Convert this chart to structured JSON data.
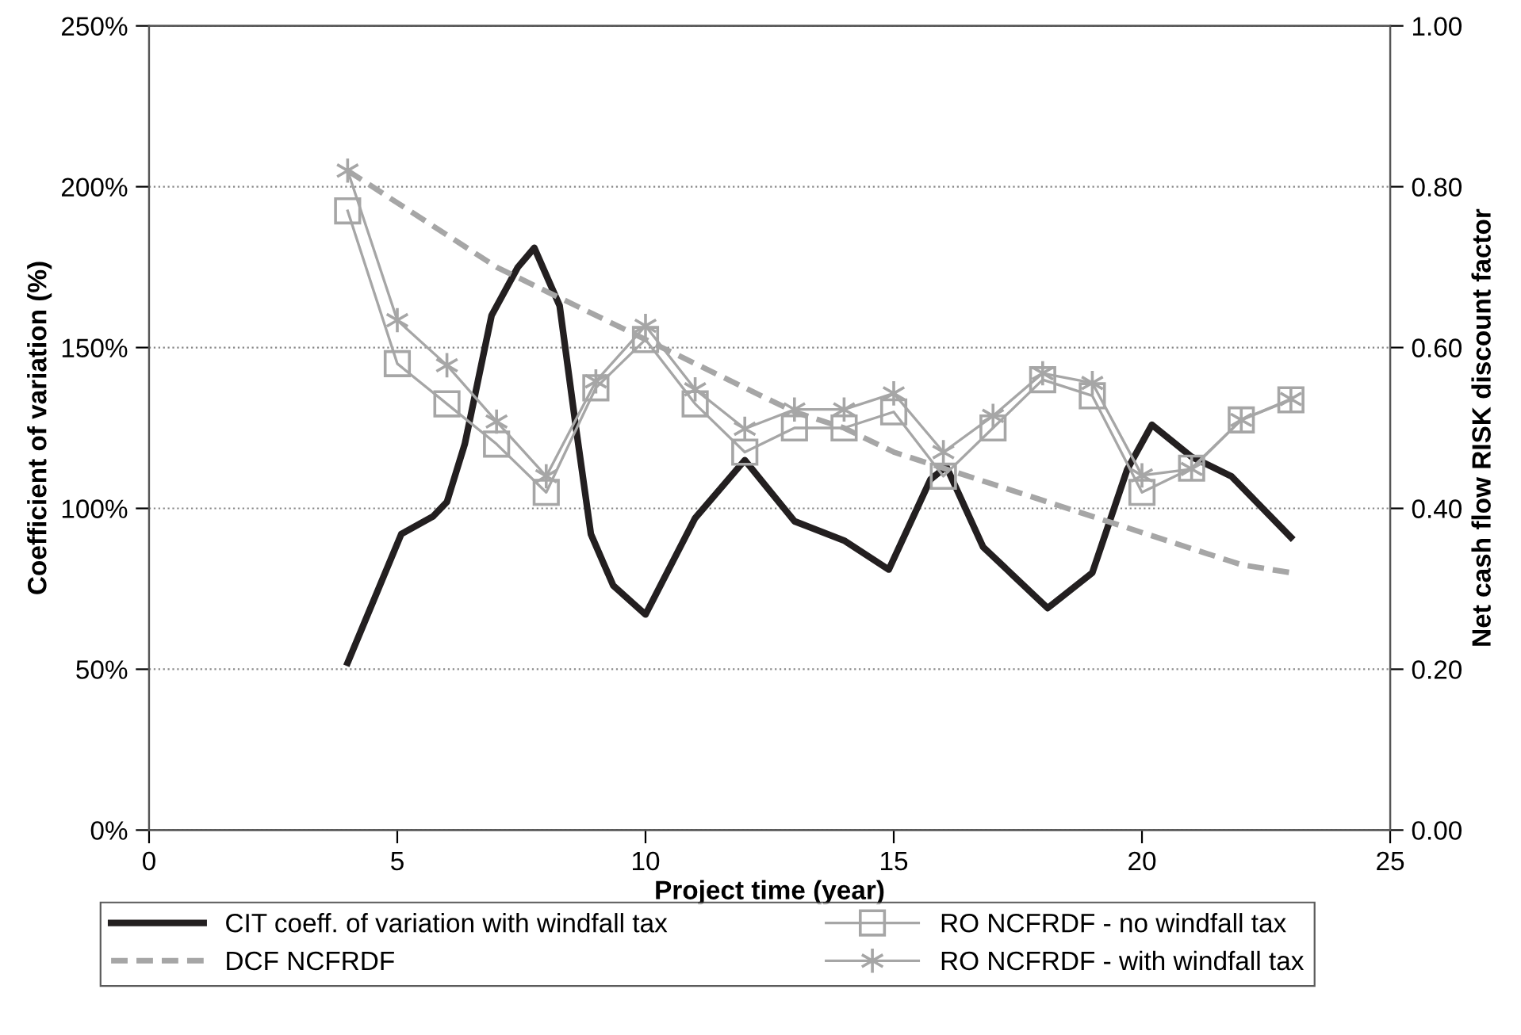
{
  "chart_data": {
    "type": "line",
    "xlabel": "Project time (year)",
    "ylabel": "Coefficient of variation (%)",
    "y2label": "Net cash flow RISK discount factor",
    "xlim": [
      0,
      25
    ],
    "xticks": [
      0,
      5,
      10,
      15,
      20,
      25
    ],
    "ylim": [
      0,
      250
    ],
    "yticks": [
      {
        "value": 0,
        "label": "0%"
      },
      {
        "value": 50,
        "label": "50%"
      },
      {
        "value": 100,
        "label": "100%"
      },
      {
        "value": 150,
        "label": "150%"
      },
      {
        "value": 200,
        "label": "200%"
      },
      {
        "value": 250,
        "label": "250%"
      }
    ],
    "y2lim": [
      0,
      1
    ],
    "y2ticks": [
      {
        "value": 0,
        "label": "0.00"
      },
      {
        "value": 0.2,
        "label": "0.20"
      },
      {
        "value": 0.4,
        "label": "0.40"
      },
      {
        "value": 0.6,
        "label": "0.60"
      },
      {
        "value": 0.8,
        "label": "0.80"
      },
      {
        "value": 1,
        "label": "1.00"
      }
    ],
    "grid": "y",
    "legend": "bottom",
    "series": [
      {
        "name": "CIT coeff. of variation with windfall tax",
        "color": "#231f20",
        "marker": "none",
        "line_style": "solid",
        "x": [
          4,
          5.08,
          5.72,
          6.0,
          6.36,
          6.9,
          7.43,
          7.76,
          8.27,
          8.6,
          8.9,
          9.35,
          10.0,
          11.0,
          12.0,
          13.0,
          14.0,
          14.9,
          15.74,
          16.06,
          16.8,
          18.1,
          19.0,
          19.7,
          20.2,
          21.0,
          21.8,
          23.0
        ],
        "values": [
          52,
          92,
          97.5,
          102,
          120,
          160,
          175,
          181,
          163,
          125,
          92,
          76,
          67,
          97,
          115,
          96,
          90,
          81,
          109,
          113,
          88,
          69,
          80,
          112,
          126,
          116,
          110,
          91
        ]
      },
      {
        "name": "DCF NCFRDF",
        "color": "#a6a6a6",
        "marker": "none",
        "line_style": "dashed",
        "axis": "y2",
        "x": [
          4,
          5,
          6,
          7,
          8,
          9,
          10,
          11,
          12,
          13,
          14,
          15,
          16,
          17,
          18,
          19,
          20,
          21,
          22,
          23
        ],
        "values": [
          0.82,
          0.78,
          0.74,
          0.7,
          0.67,
          0.64,
          0.61,
          0.58,
          0.55,
          0.52,
          0.5,
          0.47,
          0.45,
          0.43,
          0.41,
          0.39,
          0.37,
          0.35,
          0.33,
          0.32
        ]
      },
      {
        "name": "RO NCFRDF - no windfall tax",
        "color": "#a6a6a6",
        "marker": "square",
        "line_style": "solid",
        "axis": "y2",
        "x": [
          4,
          5,
          6,
          7,
          8,
          9,
          10,
          11,
          12,
          13,
          14,
          15,
          16,
          17,
          18,
          19,
          20,
          21,
          22,
          23
        ],
        "values": [
          0.77,
          0.58,
          0.53,
          0.48,
          0.42,
          0.55,
          0.61,
          0.53,
          0.47,
          0.5,
          0.5,
          0.52,
          0.44,
          0.5,
          0.56,
          0.54,
          0.42,
          0.45,
          0.51,
          0.535
        ]
      },
      {
        "name": "RO NCFRDF - with windfall tax",
        "color": "#a6a6a6",
        "marker": "cross",
        "line_style": "solid",
        "axis": "y2",
        "x": [
          4,
          5,
          6,
          7,
          8,
          9,
          10,
          11,
          12,
          13,
          14,
          15,
          16,
          17,
          18,
          19,
          20,
          21,
          22,
          23
        ],
        "values": [
          0.82,
          0.634,
          0.578,
          0.508,
          0.44,
          0.558,
          0.627,
          0.548,
          0.499,
          0.523,
          0.523,
          0.543,
          0.47,
          0.515,
          0.568,
          0.556,
          0.441,
          0.449,
          0.51,
          0.536
        ]
      }
    ]
  }
}
